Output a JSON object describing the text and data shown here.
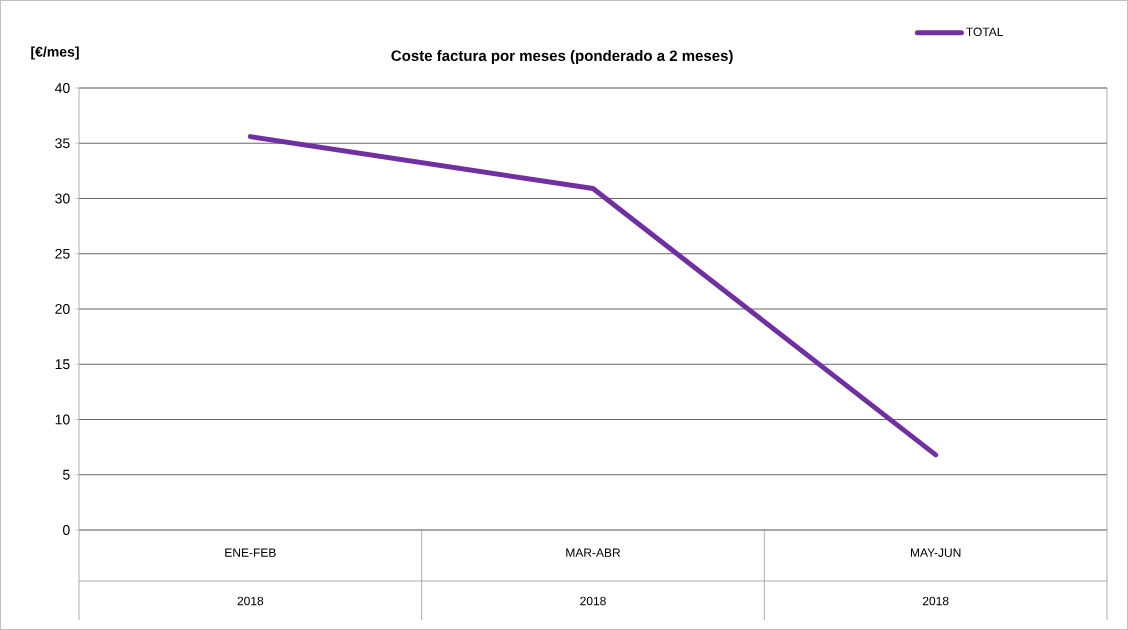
{
  "chart_data": {
    "type": "line",
    "title": "Coste factura por meses (ponderado a 2 meses)",
    "ylabel": "[€/mes]",
    "categories": [
      "ENE-FEB",
      "MAR-ABR",
      "MAY-JUN"
    ],
    "series": [
      {
        "name": "TOTAL",
        "color": "#7030a0",
        "values": [
          35.6,
          30.9,
          6.8
        ]
      }
    ],
    "ylim": [
      0,
      40
    ],
    "yticks": [
      0,
      5,
      10,
      15,
      20,
      25,
      30,
      35,
      40
    ],
    "grid": "y",
    "legend": "top right",
    "marker": "none",
    "line_style": "solid",
    "annotations": [
      "2018",
      "2018",
      "2018"
    ]
  }
}
